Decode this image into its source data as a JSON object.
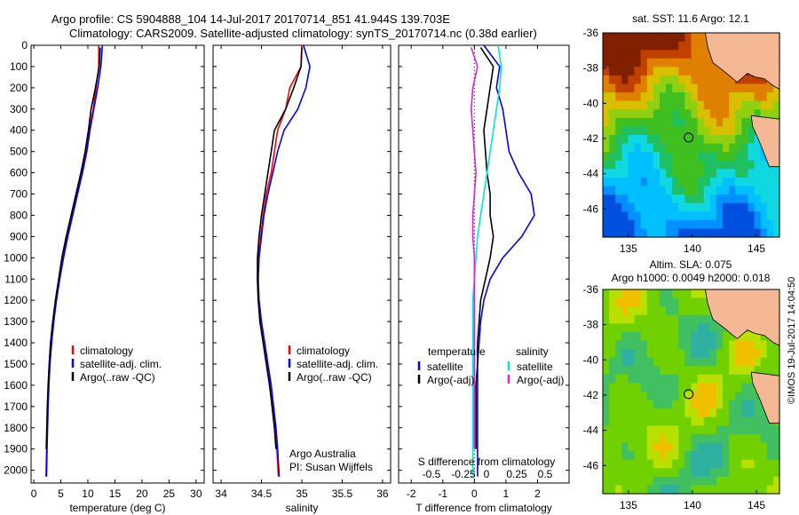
{
  "header": {
    "line1": "Argo profile: CS 5904888_104 14-Jul-2017 20170714_851 41.944S 139.703E",
    "line2": "Climatology: CARS2009. Satellite-adjusted climatology: synTS_20170714.nc (0.38d earlier)"
  },
  "depth_axis": {
    "ylim": [
      0,
      2060
    ],
    "ticks": [
      0,
      100,
      200,
      300,
      400,
      500,
      600,
      700,
      800,
      900,
      1000,
      1100,
      1200,
      1300,
      1400,
      1500,
      1600,
      1700,
      1800,
      1900,
      2000
    ]
  },
  "colors": {
    "climatology": "#ff0000",
    "satellite": "#0000ff",
    "argo": "#000000",
    "satellite_salinity": "#00e5e5",
    "argo_salinity_adj": "#e020e0",
    "land": "#f5b895"
  },
  "chart_data": [
    {
      "type": "line",
      "panel": "temperature",
      "xlabel": "temperature (deg C)",
      "xlim": [
        -0.5,
        31.5
      ],
      "xticks": [
        0,
        5,
        10,
        15,
        20,
        25,
        30
      ],
      "legend": [
        "climatology",
        "satellite-adj. clim.",
        "Argo(..raw -QC)"
      ],
      "series": [
        {
          "name": "climatology",
          "color": "#ff0000",
          "x": [
            12.0,
            12.0,
            11.5,
            11.0,
            10.2,
            9.6,
            8.8,
            7.9,
            7.0,
            6.2,
            5.4,
            4.7,
            4.1,
            3.6,
            3.2,
            2.9,
            2.7,
            2.55,
            2.45,
            2.35,
            2.25
          ],
          "y": [
            0,
            100,
            200,
            300,
            400,
            500,
            600,
            700,
            800,
            900,
            1000,
            1100,
            1200,
            1300,
            1400,
            1500,
            1600,
            1700,
            1800,
            1900,
            2030
          ]
        },
        {
          "name": "satellite-adj. clim.",
          "color": "#0000ff",
          "x": [
            12.7,
            12.4,
            11.8,
            11.1,
            10.4,
            9.8,
            9.0,
            8.1,
            7.2,
            6.3,
            5.5,
            4.8,
            4.2,
            3.7,
            3.3,
            3.0,
            2.8,
            2.65,
            2.55,
            2.45,
            2.35
          ],
          "y": [
            0,
            100,
            200,
            300,
            400,
            500,
            600,
            700,
            800,
            900,
            1000,
            1100,
            1200,
            1300,
            1400,
            1500,
            1600,
            1700,
            1800,
            1900,
            2030
          ]
        },
        {
          "name": "Argo(..raw -QC)",
          "color": "#000000",
          "x": [
            12.3,
            12.1,
            11.4,
            10.6,
            10.1,
            9.5,
            8.7,
            7.8,
            6.9,
            6.0,
            5.2,
            4.6,
            4.0,
            3.5,
            3.1,
            2.85,
            2.65,
            2.5,
            2.4,
            2.3
          ],
          "y": [
            10,
            100,
            200,
            300,
            400,
            500,
            600,
            700,
            800,
            900,
            1000,
            1100,
            1200,
            1300,
            1400,
            1500,
            1600,
            1700,
            1800,
            1900
          ]
        }
      ]
    },
    {
      "type": "line",
      "panel": "salinity",
      "xlabel": "salinity",
      "xlim": [
        33.9,
        36.1
      ],
      "xticks": [
        34,
        34.5,
        35,
        35.5,
        36
      ],
      "legend": [
        "climatology",
        "satellite-adj. clim.",
        "Argo(..raw -QC)"
      ],
      "annotations": [
        "Argo Australia",
        "PI: Susan Wijffels"
      ],
      "series": [
        {
          "name": "climatology",
          "color": "#ff0000",
          "x": [
            35.0,
            34.99,
            34.85,
            34.8,
            34.7,
            34.66,
            34.62,
            34.56,
            34.52,
            34.49,
            34.46,
            34.45,
            34.46,
            34.49,
            34.53,
            34.57,
            34.61,
            34.64,
            34.67,
            34.69,
            34.71
          ],
          "y": [
            0,
            100,
            200,
            300,
            400,
            500,
            600,
            700,
            800,
            900,
            1000,
            1100,
            1200,
            1300,
            1400,
            1500,
            1600,
            1700,
            1800,
            1900,
            2030
          ]
        },
        {
          "name": "satellite-adj. clim.",
          "color": "#0000ff",
          "x": [
            35.02,
            35.1,
            35.05,
            34.95,
            34.78,
            34.7,
            34.64,
            34.58,
            34.53,
            34.5,
            34.47,
            34.46,
            34.47,
            34.5,
            34.54,
            34.58,
            34.62,
            34.65,
            34.68,
            34.7,
            34.72
          ],
          "y": [
            0,
            100,
            200,
            300,
            400,
            500,
            600,
            700,
            800,
            900,
            1000,
            1100,
            1200,
            1300,
            1400,
            1500,
            1600,
            1700,
            1800,
            1900,
            2030
          ]
        },
        {
          "name": "Argo(..raw -QC)",
          "color": "#000000",
          "x": [
            35.0,
            34.99,
            34.9,
            34.8,
            34.66,
            34.62,
            34.58,
            34.54,
            34.5,
            34.47,
            34.45,
            34.45,
            34.46,
            34.48,
            34.52,
            34.56,
            34.6,
            34.63,
            34.66,
            34.68
          ],
          "y": [
            10,
            100,
            200,
            300,
            400,
            500,
            600,
            700,
            800,
            900,
            1000,
            1100,
            1200,
            1300,
            1400,
            1500,
            1600,
            1700,
            1800,
            1900
          ]
        }
      ]
    },
    {
      "type": "line",
      "panel": "differences",
      "xlabel": "T difference from climatology",
      "top_label": "S difference from climatology",
      "xlim": [
        -2.4,
        3.0
      ],
      "xticks": [
        -2,
        -1,
        0,
        1,
        2
      ],
      "top_ticks": [
        "-0.5",
        "-0.25",
        "0",
        "0.25",
        "0.5"
      ],
      "legend_left_title": "temperature",
      "legend_right_title": "salinity",
      "legend": [
        "satellite",
        "Argo(-adj)",
        "satellite",
        "Argo(-adj)"
      ],
      "series": [
        {
          "name": "satellite",
          "group": "temperature",
          "color": "#0000ff",
          "x": [
            0.3,
            0.8,
            0.7,
            0.9,
            1.0,
            1.1,
            1.4,
            1.8,
            1.9,
            1.5,
            0.9,
            0.5,
            0.3,
            0.2,
            0.15,
            0.1,
            0.1,
            0.1,
            0.1,
            0.1,
            0.1
          ],
          "y": [
            0,
            100,
            200,
            300,
            400,
            500,
            600,
            700,
            800,
            900,
            1000,
            1100,
            1200,
            1300,
            1400,
            1500,
            1600,
            1700,
            1800,
            1900,
            2030
          ]
        },
        {
          "name": "Argo(-adj)",
          "group": "temperature",
          "color": "#000000",
          "x": [
            0.2,
            0.6,
            0.5,
            0.4,
            0.3,
            0.35,
            0.4,
            0.5,
            0.5,
            0.6,
            0.5,
            0.35,
            0.2,
            0.15,
            0.1,
            0.1,
            0.05,
            0.05,
            0.05,
            0.05
          ],
          "y": [
            10,
            100,
            200,
            300,
            400,
            500,
            600,
            700,
            800,
            900,
            1000,
            1100,
            1200,
            1300,
            1400,
            1500,
            1600,
            1700,
            1800,
            1900
          ]
        },
        {
          "name": "satellite",
          "group": "salinity",
          "color": "#00e5e5",
          "x": [
            0.75,
            0.85,
            0.8,
            0.7,
            0.6,
            0.5,
            0.4,
            0.3,
            0.2,
            0.1,
            0.05,
            0.0,
            -0.05,
            -0.05,
            -0.05,
            -0.05,
            -0.05,
            -0.05,
            -0.05,
            -0.05,
            -0.05
          ],
          "y": [
            0,
            100,
            200,
            300,
            400,
            500,
            600,
            700,
            800,
            900,
            1000,
            1100,
            1200,
            1300,
            1400,
            1500,
            1600,
            1700,
            1800,
            1900,
            2030
          ]
        },
        {
          "name": "Argo(-adj)",
          "group": "salinity",
          "color": "#e020e0",
          "x": [
            -0.1,
            0.1,
            -0.05,
            -0.1,
            -0.05,
            0.0,
            0.05,
            0.0,
            -0.05,
            -0.05,
            0.0,
            0.0,
            0.0,
            0.0,
            0.0,
            0.0,
            0.0,
            0.0,
            0.0,
            0.0
          ],
          "y": [
            10,
            100,
            200,
            300,
            400,
            500,
            600,
            700,
            800,
            900,
            1000,
            1100,
            1200,
            1300,
            1400,
            1500,
            1600,
            1700,
            1800,
            1900
          ]
        }
      ]
    },
    {
      "type": "heatmap",
      "panel": "sst_map",
      "title": "sat. SST: 11.6 Argo: 12.1",
      "xlim": [
        133,
        146.8
      ],
      "ylim": [
        -47.6,
        -36
      ],
      "xticks": [
        135,
        140,
        145
      ],
      "yticks": [
        -36,
        -38,
        -40,
        -42,
        -44,
        -46
      ],
      "marker": {
        "lon": 139.703,
        "lat": -41.944
      }
    },
    {
      "type": "heatmap",
      "panel": "sla_map",
      "title": "Altim. SLA: 0.075",
      "subtitle": "Argo h1000: 0.0049 h2000: 0.018",
      "xlim": [
        133,
        146.8
      ],
      "ylim": [
        -47.6,
        -36
      ],
      "xticks": [
        135,
        140,
        145
      ],
      "yticks": [
        -36,
        -38,
        -40,
        -42,
        -44,
        -46
      ],
      "marker": {
        "lon": 139.703,
        "lat": -41.944
      }
    }
  ],
  "watermark": "©IMOS 19-Jul-2017 14:04:50"
}
